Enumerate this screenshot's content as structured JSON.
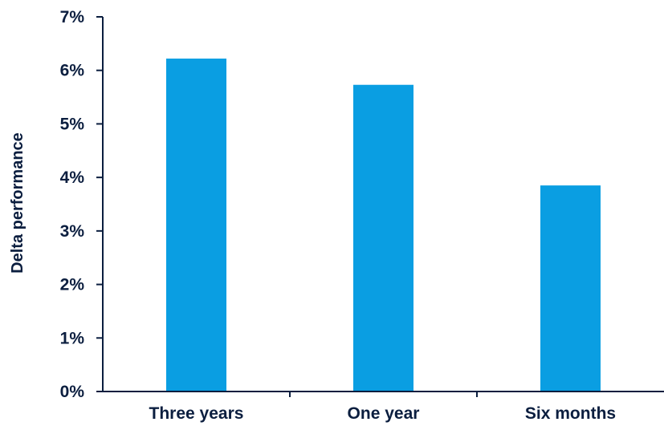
{
  "chart_data": {
    "type": "bar",
    "title": "",
    "xlabel": "",
    "ylabel": "Delta performance",
    "categories": [
      "Three years",
      "One year",
      "Six months"
    ],
    "values": [
      6.22,
      5.73,
      3.85
    ],
    "y_ticks": [
      "0%",
      "1%",
      "2%",
      "3%",
      "4%",
      "5%",
      "6%",
      "7%"
    ],
    "ylim": [
      0,
      7
    ],
    "grid": false,
    "colors": {
      "bar": "#0a9ee2",
      "axis": "#0b1e3f",
      "text": "#0b1e3f"
    }
  }
}
